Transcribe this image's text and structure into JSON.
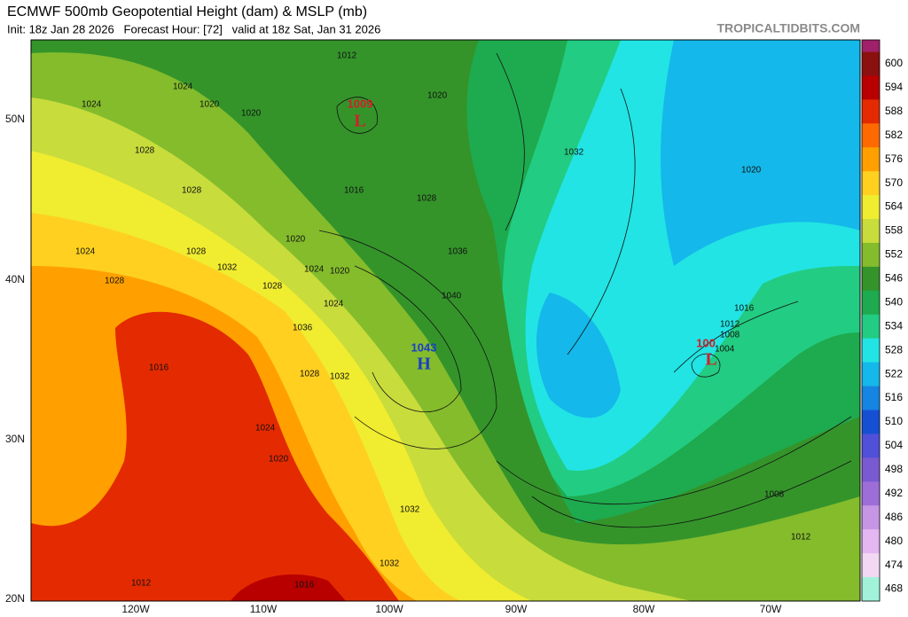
{
  "header": {
    "title": "ECMWF 500mb Geopotential Height (dam) & MSLP (mb)",
    "subtitle": "Init: 18z Jan 28 2026   Forecast Hour: [72]   valid at 18z Sat, Jan 31 2026",
    "watermark": "TROPICALTIDBITS.COM"
  },
  "map": {
    "lat_labels": [
      "50N",
      "40N",
      "30N",
      "20N"
    ],
    "lon_labels": [
      "120W",
      "110W",
      "100W",
      "90W",
      "80W",
      "70W"
    ],
    "centers": [
      {
        "pressure": "1009",
        "symbol": "L"
      },
      {
        "pressure": "1043",
        "symbol": "H"
      },
      {
        "pressure": "100",
        "symbol": "L"
      }
    ],
    "isobar_labels": [
      "1012",
      "1024",
      "1024",
      "1020",
      "1020",
      "1020",
      "1028",
      "1028",
      "1028",
      "1032",
      "1016",
      "1028",
      "1036",
      "1040",
      "1024",
      "1028",
      "1032",
      "1024",
      "1020",
      "1028",
      "1036",
      "1024",
      "1032",
      "1016",
      "1020",
      "1028",
      "1032",
      "1020",
      "1024",
      "1016",
      "1012",
      "1020",
      "1016",
      "1012",
      "1008",
      "1004",
      "1008",
      "1012",
      "1032"
    ]
  },
  "colorbar": {
    "top_color": "#a0206a",
    "values": [
      600,
      594,
      588,
      582,
      576,
      570,
      564,
      558,
      552,
      546,
      540,
      534,
      528,
      522,
      516,
      510,
      504,
      498,
      492,
      486,
      480,
      474,
      468
    ],
    "colors": [
      "#8b1010",
      "#b80000",
      "#e42a00",
      "#ff6a00",
      "#ffa000",
      "#ffd020",
      "#f0ec30",
      "#c8dc3c",
      "#84bc2c",
      "#34942a",
      "#1eaa4e",
      "#22cc82",
      "#22e4e4",
      "#14b8ea",
      "#1684e2",
      "#1650d2",
      "#5050d8",
      "#7a5ad0",
      "#9e6ed8",
      "#c696e4",
      "#e4b6f2",
      "#f2d8f2",
      "#a2f2da"
    ]
  }
}
